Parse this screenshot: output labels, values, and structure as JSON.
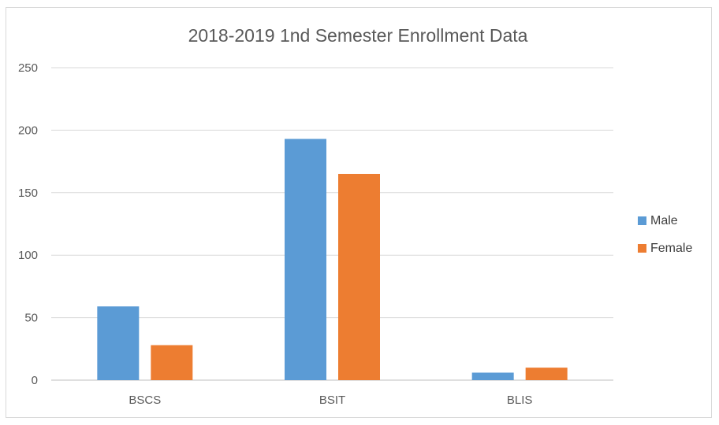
{
  "chart_data": {
    "type": "bar",
    "title": "2018-2019 1nd Semester Enrollment Data",
    "categories": [
      "BSCS",
      "BSIT",
      "BLIS"
    ],
    "series": [
      {
        "name": "Male",
        "values": [
          59,
          193,
          6
        ],
        "color": "#5B9BD5"
      },
      {
        "name": "Female",
        "values": [
          28,
          165,
          10
        ],
        "color": "#ED7D31"
      }
    ],
    "ylim": [
      0,
      250
    ],
    "yticks": [
      0,
      50,
      100,
      150,
      200,
      250
    ],
    "grid": true,
    "legend_position": "right",
    "xlabel": "",
    "ylabel": ""
  }
}
